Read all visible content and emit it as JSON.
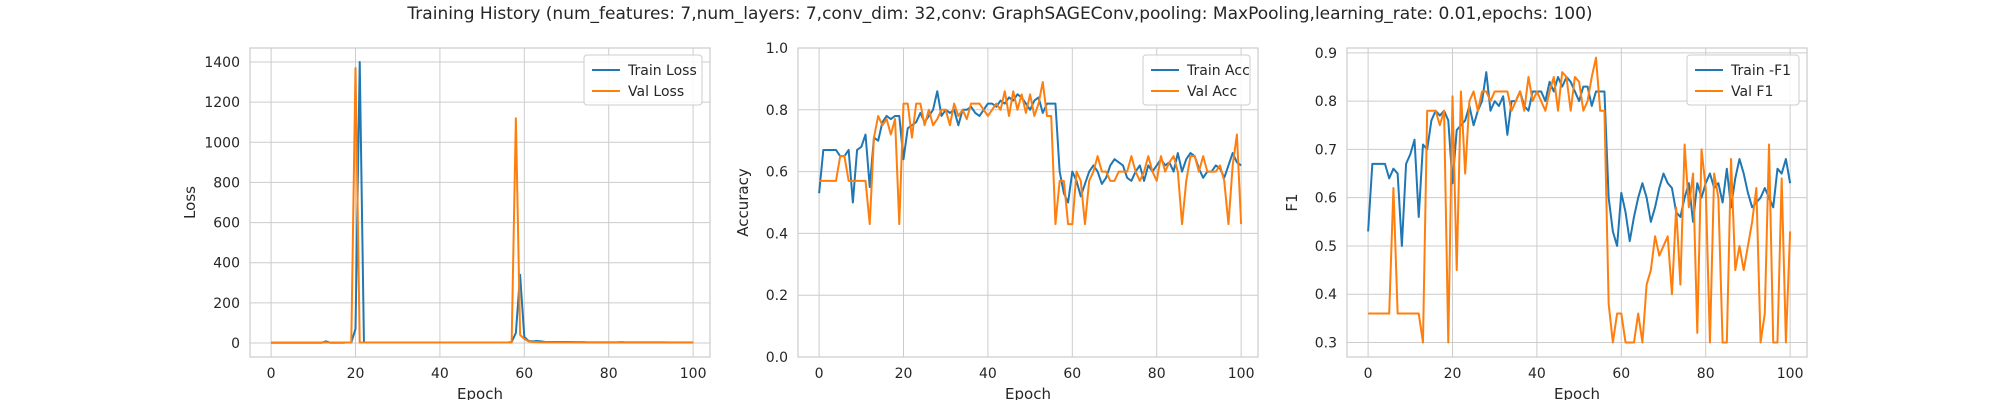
{
  "suptitle": "Training History (num_features: 7,num_layers: 7,conv_dim: 32,conv: GraphSAGEConv,pooling: MaxPooling,learning_rate: 0.01,epochs: 100)",
  "colors": {
    "series1": "#1f77b4",
    "series2": "#ff7f0e",
    "grid": "#cccccc",
    "frame": "#cccccc"
  },
  "chart_data": [
    {
      "type": "line",
      "xlabel": "Epoch",
      "ylabel": "Loss",
      "xlim": [
        -5,
        104
      ],
      "ylim": [
        -70,
        1470
      ],
      "xticks": [
        0,
        20,
        40,
        60,
        80,
        100
      ],
      "yticks": [
        0,
        200,
        400,
        600,
        800,
        1000,
        1200,
        1400
      ],
      "grid": true,
      "legend": "top-right",
      "x": [
        0,
        1,
        2,
        3,
        4,
        5,
        6,
        7,
        8,
        9,
        10,
        11,
        12,
        13,
        14,
        15,
        16,
        17,
        18,
        19,
        20,
        21,
        22,
        23,
        24,
        25,
        26,
        27,
        28,
        29,
        30,
        31,
        32,
        33,
        34,
        35,
        36,
        37,
        38,
        39,
        40,
        41,
        42,
        43,
        44,
        45,
        46,
        47,
        48,
        49,
        50,
        51,
        52,
        53,
        54,
        55,
        56,
        57,
        58,
        59,
        60,
        61,
        62,
        63,
        64,
        65,
        66,
        67,
        68,
        69,
        70,
        71,
        72,
        73,
        74,
        75,
        76,
        77,
        78,
        79,
        80,
        81,
        82,
        83,
        84,
        85,
        86,
        87,
        88,
        89,
        90,
        91,
        92,
        93,
        94,
        95,
        96,
        97,
        98,
        99,
        100
      ],
      "series": [
        {
          "name": "Train Loss",
          "values": [
            1,
            1,
            1,
            1,
            1,
            1,
            1,
            1,
            1,
            1,
            1,
            1,
            1,
            8,
            1,
            1,
            1,
            1,
            2,
            2,
            70,
            1400,
            3,
            2,
            2,
            2,
            2,
            2,
            2,
            2,
            2,
            2,
            2,
            2,
            2,
            2,
            2,
            2,
            2,
            2,
            2,
            2,
            2,
            2,
            2,
            2,
            2,
            2,
            2,
            2,
            2,
            2,
            2,
            2,
            2,
            2,
            2,
            5,
            50,
            340,
            30,
            10,
            8,
            10,
            8,
            5,
            5,
            5,
            5,
            5,
            5,
            5,
            4,
            4,
            4,
            3,
            3,
            3,
            3,
            3,
            3,
            3,
            3,
            4,
            3,
            3,
            3,
            3,
            3,
            3,
            3,
            3,
            3,
            3,
            2,
            2,
            2,
            2,
            2,
            2,
            2
          ]
        },
        {
          "name": "Val Loss",
          "values": [
            2,
            2,
            2,
            2,
            2,
            2,
            2,
            2,
            2,
            2,
            2,
            2,
            2,
            3,
            2,
            2,
            2,
            2,
            2,
            2,
            1370,
            2,
            2,
            2,
            2,
            2,
            2,
            2,
            2,
            2,
            2,
            2,
            2,
            2,
            2,
            2,
            2,
            2,
            2,
            2,
            2,
            2,
            2,
            2,
            2,
            2,
            2,
            2,
            2,
            2,
            2,
            2,
            2,
            2,
            2,
            2,
            2,
            2,
            1120,
            40,
            20,
            8,
            5,
            5,
            3,
            3,
            3,
            3,
            3,
            3,
            3,
            3,
            3,
            3,
            3,
            3,
            3,
            3,
            3,
            3,
            3,
            3,
            3,
            3,
            3,
            3,
            3,
            3,
            3,
            3,
            3,
            3,
            3,
            3,
            3,
            3,
            3,
            3,
            3,
            3,
            3
          ]
        }
      ]
    },
    {
      "type": "line",
      "xlabel": "Epoch",
      "ylabel": "Accuracy",
      "xlim": [
        -5,
        104
      ],
      "ylim": [
        0,
        1.0
      ],
      "xticks": [
        0,
        20,
        40,
        60,
        80,
        100
      ],
      "yticks": [
        0.0,
        0.2,
        0.4,
        0.6,
        0.8,
        1.0
      ],
      "ytick_decimals": 1,
      "grid": true,
      "legend": "top-right",
      "x": [
        0,
        1,
        2,
        3,
        4,
        5,
        6,
        7,
        8,
        9,
        10,
        11,
        12,
        13,
        14,
        15,
        16,
        17,
        18,
        19,
        20,
        21,
        22,
        23,
        24,
        25,
        26,
        27,
        28,
        29,
        30,
        31,
        32,
        33,
        34,
        35,
        36,
        37,
        38,
        39,
        40,
        41,
        42,
        43,
        44,
        45,
        46,
        47,
        48,
        49,
        50,
        51,
        52,
        53,
        54,
        55,
        56,
        57,
        58,
        59,
        60,
        61,
        62,
        63,
        64,
        65,
        66,
        67,
        68,
        69,
        70,
        71,
        72,
        73,
        74,
        75,
        76,
        77,
        78,
        79,
        80,
        81,
        82,
        83,
        84,
        85,
        86,
        87,
        88,
        89,
        90,
        91,
        92,
        93,
        94,
        95,
        96,
        97,
        98,
        99,
        100
      ],
      "series": [
        {
          "name": "Train Acc",
          "values": [
            0.53,
            0.67,
            0.67,
            0.67,
            0.67,
            0.65,
            0.65,
            0.67,
            0.5,
            0.67,
            0.68,
            0.72,
            0.55,
            0.71,
            0.7,
            0.76,
            0.78,
            0.77,
            0.78,
            0.78,
            0.64,
            0.74,
            0.75,
            0.76,
            0.79,
            0.76,
            0.78,
            0.8,
            0.86,
            0.78,
            0.8,
            0.79,
            0.8,
            0.75,
            0.8,
            0.8,
            0.81,
            0.79,
            0.78,
            0.8,
            0.82,
            0.82,
            0.81,
            0.83,
            0.82,
            0.84,
            0.83,
            0.85,
            0.84,
            0.82,
            0.8,
            0.83,
            0.84,
            0.79,
            0.82,
            0.82,
            0.82,
            0.6,
            0.53,
            0.5,
            0.6,
            0.57,
            0.52,
            0.56,
            0.6,
            0.62,
            0.6,
            0.56,
            0.58,
            0.62,
            0.64,
            0.63,
            0.62,
            0.58,
            0.57,
            0.6,
            0.62,
            0.57,
            0.62,
            0.6,
            0.62,
            0.64,
            0.62,
            0.63,
            0.6,
            0.66,
            0.6,
            0.64,
            0.66,
            0.65,
            0.61,
            0.58,
            0.6,
            0.6,
            0.62,
            0.61,
            0.58,
            0.62,
            0.66,
            0.63,
            0.62
          ]
        },
        {
          "name": "Val Acc",
          "values": [
            0.57,
            0.57,
            0.57,
            0.57,
            0.57,
            0.65,
            0.65,
            0.57,
            0.57,
            0.57,
            0.57,
            0.57,
            0.43,
            0.71,
            0.78,
            0.75,
            0.77,
            0.72,
            0.77,
            0.43,
            0.82,
            0.82,
            0.71,
            0.82,
            0.82,
            0.75,
            0.8,
            0.75,
            0.77,
            0.8,
            0.8,
            0.75,
            0.82,
            0.78,
            0.8,
            0.77,
            0.82,
            0.82,
            0.82,
            0.8,
            0.78,
            0.8,
            0.82,
            0.8,
            0.86,
            0.78,
            0.86,
            0.8,
            0.85,
            0.79,
            0.85,
            0.78,
            0.82,
            0.89,
            0.78,
            0.78,
            0.43,
            0.57,
            0.57,
            0.43,
            0.43,
            0.6,
            0.57,
            0.43,
            0.57,
            0.6,
            0.65,
            0.6,
            0.6,
            0.57,
            0.57,
            0.6,
            0.6,
            0.6,
            0.65,
            0.6,
            0.57,
            0.6,
            0.65,
            0.6,
            0.57,
            0.65,
            0.6,
            0.63,
            0.65,
            0.6,
            0.43,
            0.57,
            0.65,
            0.65,
            0.6,
            0.65,
            0.6,
            0.6,
            0.6,
            0.62,
            0.57,
            0.43,
            0.62,
            0.72,
            0.43
          ]
        }
      ]
    },
    {
      "type": "line",
      "xlabel": "Epoch",
      "ylabel": "F1",
      "xlim": [
        -5,
        104
      ],
      "ylim": [
        0.27,
        0.91
      ],
      "xticks": [
        0,
        20,
        40,
        60,
        80,
        100
      ],
      "yticks": [
        0.3,
        0.4,
        0.5,
        0.6,
        0.7,
        0.8,
        0.9
      ],
      "ytick_decimals": 1,
      "grid": true,
      "legend": "top-right",
      "x": [
        0,
        1,
        2,
        3,
        4,
        5,
        6,
        7,
        8,
        9,
        10,
        11,
        12,
        13,
        14,
        15,
        16,
        17,
        18,
        19,
        20,
        21,
        22,
        23,
        24,
        25,
        26,
        27,
        28,
        29,
        30,
        31,
        32,
        33,
        34,
        35,
        36,
        37,
        38,
        39,
        40,
        41,
        42,
        43,
        44,
        45,
        46,
        47,
        48,
        49,
        50,
        51,
        52,
        53,
        54,
        55,
        56,
        57,
        58,
        59,
        60,
        61,
        62,
        63,
        64,
        65,
        66,
        67,
        68,
        69,
        70,
        71,
        72,
        73,
        74,
        75,
        76,
        77,
        78,
        79,
        80,
        81,
        82,
        83,
        84,
        85,
        86,
        87,
        88,
        89,
        90,
        91,
        92,
        93,
        94,
        95,
        96,
        97,
        98,
        99,
        100
      ],
      "series": [
        {
          "name": "Train -F1",
          "values": [
            0.53,
            0.67,
            0.67,
            0.67,
            0.67,
            0.64,
            0.66,
            0.65,
            0.5,
            0.67,
            0.69,
            0.72,
            0.56,
            0.71,
            0.7,
            0.76,
            0.78,
            0.77,
            0.78,
            0.76,
            0.63,
            0.74,
            0.75,
            0.76,
            0.79,
            0.75,
            0.78,
            0.8,
            0.86,
            0.78,
            0.8,
            0.79,
            0.81,
            0.73,
            0.8,
            0.8,
            0.82,
            0.79,
            0.78,
            0.82,
            0.82,
            0.82,
            0.8,
            0.84,
            0.82,
            0.85,
            0.83,
            0.85,
            0.84,
            0.82,
            0.8,
            0.83,
            0.83,
            0.79,
            0.82,
            0.82,
            0.82,
            0.6,
            0.53,
            0.5,
            0.61,
            0.57,
            0.51,
            0.56,
            0.6,
            0.63,
            0.6,
            0.55,
            0.58,
            0.62,
            0.65,
            0.63,
            0.62,
            0.57,
            0.56,
            0.6,
            0.63,
            0.55,
            0.63,
            0.6,
            0.63,
            0.65,
            0.62,
            0.63,
            0.59,
            0.66,
            0.58,
            0.64,
            0.68,
            0.65,
            0.61,
            0.58,
            0.59,
            0.6,
            0.62,
            0.6,
            0.58,
            0.66,
            0.65,
            0.68,
            0.63
          ]
        },
        {
          "name": "Val F1",
          "values": [
            0.36,
            0.36,
            0.36,
            0.36,
            0.36,
            0.36,
            0.62,
            0.36,
            0.36,
            0.36,
            0.36,
            0.36,
            0.36,
            0.3,
            0.78,
            0.78,
            0.78,
            0.75,
            0.78,
            0.3,
            0.81,
            0.45,
            0.82,
            0.65,
            0.8,
            0.82,
            0.78,
            0.82,
            0.82,
            0.8,
            0.82,
            0.82,
            0.82,
            0.82,
            0.78,
            0.8,
            0.82,
            0.78,
            0.85,
            0.8,
            0.82,
            0.8,
            0.78,
            0.82,
            0.85,
            0.78,
            0.86,
            0.85,
            0.78,
            0.85,
            0.84,
            0.78,
            0.8,
            0.85,
            0.89,
            0.78,
            0.78,
            0.38,
            0.3,
            0.36,
            0.36,
            0.3,
            0.3,
            0.3,
            0.36,
            0.3,
            0.42,
            0.45,
            0.52,
            0.48,
            0.5,
            0.52,
            0.4,
            0.58,
            0.42,
            0.71,
            0.58,
            0.65,
            0.32,
            0.7,
            0.62,
            0.3,
            0.65,
            0.6,
            0.3,
            0.3,
            0.68,
            0.45,
            0.5,
            0.45,
            0.5,
            0.55,
            0.62,
            0.3,
            0.36,
            0.71,
            0.3,
            0.3,
            0.64,
            0.3,
            0.53
          ]
        }
      ]
    }
  ]
}
